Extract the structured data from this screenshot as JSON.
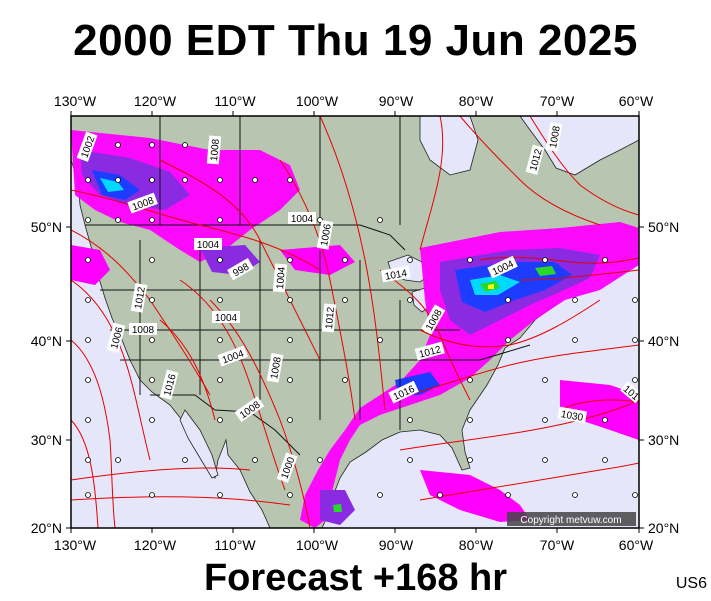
{
  "title": "2000 EDT Thu 19 Jun 2025",
  "footer": "Forecast +168 hr",
  "region_code": "US6",
  "copyright": "Copyright metvuw.com",
  "axes": {
    "lon_labels": [
      "130°W",
      "120°W",
      "110°W",
      "100°W",
      "90°W",
      "80°W",
      "70°W",
      "60°W"
    ],
    "lat_labels": [
      "50°N",
      "40°N",
      "30°N",
      "20°N"
    ]
  },
  "isobars": [
    "1002",
    "1008",
    "1008",
    "1004",
    "1004",
    "998",
    "1006",
    "1004",
    "1014",
    "1008",
    "1012",
    "1016",
    "1012",
    "1006",
    "1004",
    "1012",
    "1004",
    "1008",
    "1008",
    "1016",
    "1030",
    "1012",
    "1008",
    "1004",
    "1008",
    "1000",
    "101"
  ],
  "colors": {
    "ocean": "#e6e6fa",
    "land": "#b8c6b1",
    "isobar": "#e60000",
    "border": "#111111",
    "precip_magenta": "#ff00ff",
    "precip_purple": "#8a2be2",
    "precip_blue": "#1e3cff",
    "precip_cyan": "#00d9ff",
    "precip_green": "#28d828",
    "precip_yellow": "#ffff00"
  }
}
